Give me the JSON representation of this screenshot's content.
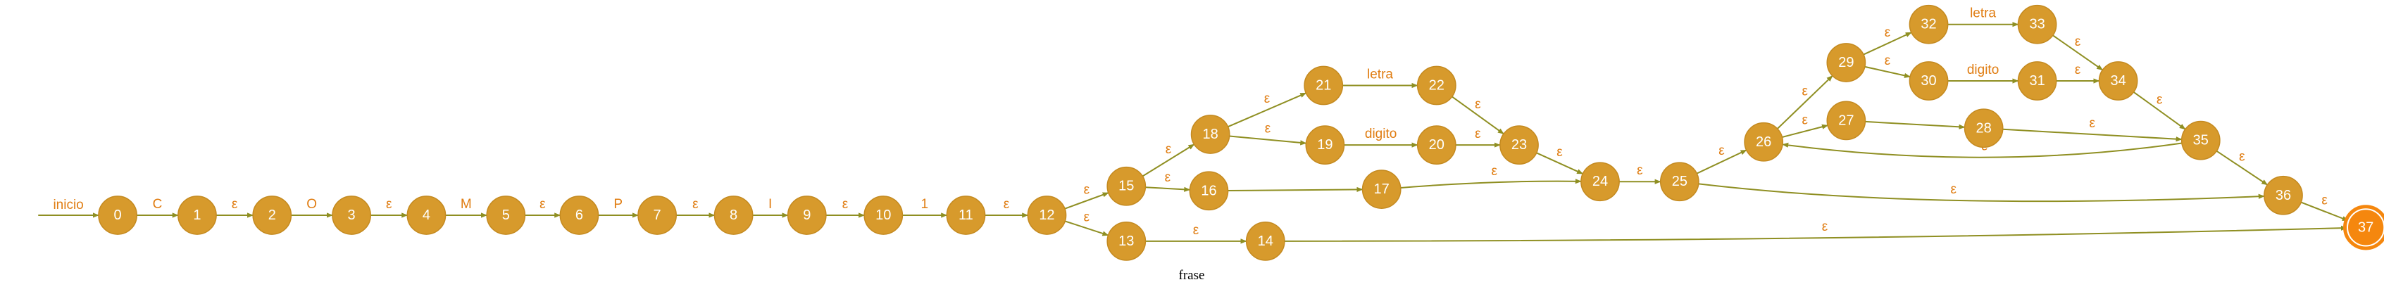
{
  "caption": "frase",
  "colors": {
    "state": "#d79a2c",
    "accept": "#f5870e",
    "edge": "#8f8f22",
    "label": "#e07d12"
  },
  "start": {
    "label": "inicio",
    "target": "0"
  },
  "states": [
    {
      "id": "0"
    },
    {
      "id": "1"
    },
    {
      "id": "2"
    },
    {
      "id": "3"
    },
    {
      "id": "4"
    },
    {
      "id": "5"
    },
    {
      "id": "6"
    },
    {
      "id": "7"
    },
    {
      "id": "8"
    },
    {
      "id": "9"
    },
    {
      "id": "10"
    },
    {
      "id": "11"
    },
    {
      "id": "12"
    },
    {
      "id": "13"
    },
    {
      "id": "14"
    },
    {
      "id": "15"
    },
    {
      "id": "16"
    },
    {
      "id": "17"
    },
    {
      "id": "18"
    },
    {
      "id": "19"
    },
    {
      "id": "20"
    },
    {
      "id": "21"
    },
    {
      "id": "22"
    },
    {
      "id": "23"
    },
    {
      "id": "24"
    },
    {
      "id": "25"
    },
    {
      "id": "26"
    },
    {
      "id": "27"
    },
    {
      "id": "28"
    },
    {
      "id": "29"
    },
    {
      "id": "30"
    },
    {
      "id": "31"
    },
    {
      "id": "32"
    },
    {
      "id": "33"
    },
    {
      "id": "34"
    },
    {
      "id": "35"
    },
    {
      "id": "36"
    },
    {
      "id": "37",
      "accept": true
    }
  ],
  "transitions": [
    {
      "from": "0",
      "to": "1",
      "label": "C"
    },
    {
      "from": "1",
      "to": "2",
      "label": "ε"
    },
    {
      "from": "2",
      "to": "3",
      "label": "O"
    },
    {
      "from": "3",
      "to": "4",
      "label": "ε"
    },
    {
      "from": "4",
      "to": "5",
      "label": "M"
    },
    {
      "from": "5",
      "to": "6",
      "label": "ε"
    },
    {
      "from": "6",
      "to": "7",
      "label": "P"
    },
    {
      "from": "7",
      "to": "8",
      "label": "ε"
    },
    {
      "from": "8",
      "to": "9",
      "label": "I"
    },
    {
      "from": "9",
      "to": "10",
      "label": "ε"
    },
    {
      "from": "10",
      "to": "11",
      "label": "1"
    },
    {
      "from": "11",
      "to": "12",
      "label": "ε"
    },
    {
      "from": "12",
      "to": "15",
      "label": "ε"
    },
    {
      "from": "12",
      "to": "13",
      "label": "ε"
    },
    {
      "from": "13",
      "to": "14",
      "label": "ε"
    },
    {
      "from": "14",
      "to": "37",
      "label": "ε"
    },
    {
      "from": "15",
      "to": "18",
      "label": "ε"
    },
    {
      "from": "15",
      "to": "16",
      "label": "ε"
    },
    {
      "from": "16",
      "to": "17",
      "label": ""
    },
    {
      "from": "17",
      "to": "24",
      "label": "ε"
    },
    {
      "from": "18",
      "to": "21",
      "label": "ε"
    },
    {
      "from": "18",
      "to": "19",
      "label": "ε"
    },
    {
      "from": "21",
      "to": "22",
      "label": "letra"
    },
    {
      "from": "19",
      "to": "20",
      "label": "digito"
    },
    {
      "from": "22",
      "to": "23",
      "label": "ε"
    },
    {
      "from": "20",
      "to": "23",
      "label": "ε"
    },
    {
      "from": "23",
      "to": "24",
      "label": "ε"
    },
    {
      "from": "24",
      "to": "25",
      "label": "ε"
    },
    {
      "from": "25",
      "to": "26",
      "label": "ε"
    },
    {
      "from": "25",
      "to": "36",
      "label": "ε"
    },
    {
      "from": "26",
      "to": "29",
      "label": "ε"
    },
    {
      "from": "26",
      "to": "27",
      "label": "ε"
    },
    {
      "from": "27",
      "to": "28",
      "label": ""
    },
    {
      "from": "28",
      "to": "35",
      "label": "ε"
    },
    {
      "from": "29",
      "to": "32",
      "label": "ε"
    },
    {
      "from": "29",
      "to": "30",
      "label": "ε"
    },
    {
      "from": "32",
      "to": "33",
      "label": "letra"
    },
    {
      "from": "30",
      "to": "31",
      "label": "digito"
    },
    {
      "from": "33",
      "to": "34",
      "label": "ε"
    },
    {
      "from": "31",
      "to": "34",
      "label": "ε"
    },
    {
      "from": "34",
      "to": "35",
      "label": "ε"
    },
    {
      "from": "35",
      "to": "26",
      "label": "ε"
    },
    {
      "from": "35",
      "to": "36",
      "label": "ε"
    },
    {
      "from": "36",
      "to": "37",
      "label": "ε"
    }
  ]
}
